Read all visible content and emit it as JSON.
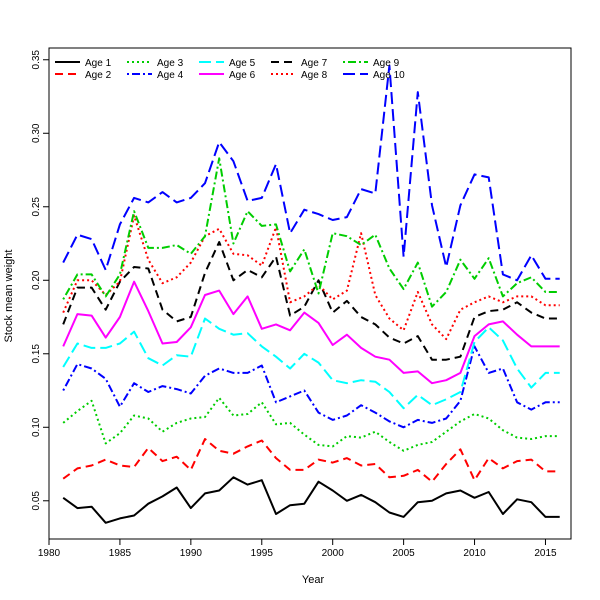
{
  "chart_data": {
    "type": "line",
    "xlabel": "Year",
    "ylabel": "Stock mean weight",
    "xlim": [
      1980,
      2016.8
    ],
    "ylim": [
      0.024,
      0.358
    ],
    "x_ticks": [
      1980,
      1985,
      1990,
      1995,
      2000,
      2005,
      2010,
      2015
    ],
    "y_ticks": [
      0.05,
      0.1,
      0.15,
      0.2,
      0.25,
      0.3,
      0.35
    ],
    "y_tick_labels": [
      "0.05",
      "0.10",
      "0.15",
      "0.20",
      "0.25",
      "0.30",
      "0.35"
    ],
    "grid": false,
    "legend_position": "top-left",
    "x": [
      1981,
      1982,
      1983,
      1984,
      1985,
      1986,
      1987,
      1988,
      1989,
      1990,
      1991,
      1992,
      1993,
      1994,
      1995,
      1996,
      1997,
      1998,
      1999,
      2000,
      2001,
      2002,
      2003,
      2004,
      2005,
      2006,
      2007,
      2008,
      2009,
      2010,
      2011,
      2012,
      2013,
      2014,
      2015,
      2016
    ],
    "series": [
      {
        "name": "Age 1",
        "color": "#000000",
        "dash": "solid",
        "values": [
          0.052,
          0.045,
          0.046,
          0.035,
          0.038,
          0.04,
          0.048,
          0.053,
          0.059,
          0.045,
          0.055,
          0.057,
          0.066,
          0.061,
          0.064,
          0.041,
          0.047,
          0.048,
          0.063,
          0.057,
          0.05,
          0.054,
          0.049,
          0.042,
          0.039,
          0.049,
          0.05,
          0.055,
          0.057,
          0.052,
          0.056,
          0.041,
          0.051,
          0.049,
          0.039,
          0.039
        ]
      },
      {
        "name": "Age 2",
        "color": "#ff0000",
        "dash": "dashed",
        "values": [
          0.065,
          0.072,
          0.074,
          0.078,
          0.074,
          0.073,
          0.086,
          0.077,
          0.08,
          0.071,
          0.092,
          0.084,
          0.082,
          0.087,
          0.091,
          0.079,
          0.071,
          0.071,
          0.078,
          0.076,
          0.079,
          0.074,
          0.075,
          0.066,
          0.067,
          0.071,
          0.063,
          0.075,
          0.085,
          0.064,
          0.079,
          0.072,
          0.077,
          0.078,
          0.07,
          0.07
        ]
      },
      {
        "name": "Age 3",
        "color": "#00cd00",
        "dash": "dotted",
        "values": [
          0.103,
          0.111,
          0.118,
          0.089,
          0.096,
          0.108,
          0.106,
          0.097,
          0.103,
          0.106,
          0.107,
          0.12,
          0.108,
          0.109,
          0.117,
          0.102,
          0.103,
          0.095,
          0.088,
          0.087,
          0.094,
          0.093,
          0.097,
          0.09,
          0.084,
          0.088,
          0.09,
          0.097,
          0.104,
          0.109,
          0.106,
          0.098,
          0.093,
          0.092,
          0.094,
          0.094
        ]
      },
      {
        "name": "Age 4",
        "color": "#0000ff",
        "dash": "dashdot",
        "values": [
          0.125,
          0.143,
          0.14,
          0.133,
          0.114,
          0.13,
          0.124,
          0.128,
          0.126,
          0.123,
          0.135,
          0.14,
          0.137,
          0.137,
          0.142,
          0.117,
          0.121,
          0.125,
          0.11,
          0.105,
          0.108,
          0.115,
          0.11,
          0.104,
          0.1,
          0.105,
          0.103,
          0.106,
          0.118,
          0.155,
          0.137,
          0.14,
          0.117,
          0.112,
          0.117,
          0.117
        ]
      },
      {
        "name": "Age 5",
        "color": "#00ffff",
        "dash": "longdash",
        "values": [
          0.141,
          0.157,
          0.154,
          0.154,
          0.157,
          0.165,
          0.147,
          0.142,
          0.149,
          0.148,
          0.174,
          0.167,
          0.163,
          0.164,
          0.155,
          0.148,
          0.14,
          0.15,
          0.144,
          0.132,
          0.13,
          0.132,
          0.131,
          0.124,
          0.113,
          0.122,
          0.115,
          0.119,
          0.124,
          0.158,
          0.168,
          0.159,
          0.14,
          0.127,
          0.137,
          0.137
        ]
      },
      {
        "name": "Age 6",
        "color": "#ff00ff",
        "dash": "solid",
        "values": [
          0.155,
          0.177,
          0.176,
          0.161,
          0.175,
          0.199,
          0.179,
          0.157,
          0.158,
          0.168,
          0.19,
          0.193,
          0.177,
          0.189,
          0.167,
          0.17,
          0.166,
          0.178,
          0.171,
          0.156,
          0.163,
          0.154,
          0.148,
          0.146,
          0.137,
          0.138,
          0.13,
          0.132,
          0.137,
          0.162,
          0.17,
          0.172,
          0.163,
          0.155,
          0.155,
          0.155
        ]
      },
      {
        "name": "Age 7",
        "color": "#000000",
        "dash": "dashed",
        "values": [
          0.17,
          0.195,
          0.195,
          0.18,
          0.199,
          0.209,
          0.208,
          0.18,
          0.172,
          0.175,
          0.205,
          0.226,
          0.2,
          0.207,
          0.202,
          0.216,
          0.176,
          0.182,
          0.2,
          0.178,
          0.186,
          0.175,
          0.17,
          0.161,
          0.157,
          0.162,
          0.146,
          0.146,
          0.148,
          0.175,
          0.179,
          0.18,
          0.185,
          0.178,
          0.174,
          0.174
        ]
      },
      {
        "name": "Age 8",
        "color": "#ff0000",
        "dash": "dotted",
        "values": [
          0.178,
          0.2,
          0.2,
          0.19,
          0.199,
          0.244,
          0.214,
          0.198,
          0.202,
          0.212,
          0.23,
          0.235,
          0.218,
          0.217,
          0.21,
          0.236,
          0.185,
          0.189,
          0.197,
          0.187,
          0.193,
          0.232,
          0.19,
          0.174,
          0.166,
          0.192,
          0.17,
          0.16,
          0.18,
          0.185,
          0.189,
          0.185,
          0.189,
          0.189,
          0.183,
          0.183
        ]
      },
      {
        "name": "Age 9",
        "color": "#00cd00",
        "dash": "dashdot",
        "values": [
          0.187,
          0.204,
          0.204,
          0.189,
          0.204,
          0.247,
          0.222,
          0.222,
          0.224,
          0.218,
          0.23,
          0.283,
          0.225,
          0.247,
          0.237,
          0.238,
          0.206,
          0.221,
          0.191,
          0.232,
          0.23,
          0.224,
          0.231,
          0.208,
          0.194,
          0.212,
          0.182,
          0.192,
          0.214,
          0.201,
          0.215,
          0.189,
          0.198,
          0.202,
          0.192,
          0.192
        ]
      },
      {
        "name": "Age 10",
        "color": "#0000ff",
        "dash": "longdash",
        "values": [
          0.212,
          0.231,
          0.228,
          0.207,
          0.238,
          0.256,
          0.253,
          0.26,
          0.253,
          0.256,
          0.266,
          0.294,
          0.281,
          0.254,
          0.256,
          0.279,
          0.232,
          0.248,
          0.245,
          0.241,
          0.243,
          0.262,
          0.259,
          0.346,
          0.216,
          0.328,
          0.251,
          0.209,
          0.251,
          0.272,
          0.27,
          0.204,
          0.2,
          0.217,
          0.201,
          0.201
        ]
      }
    ]
  }
}
